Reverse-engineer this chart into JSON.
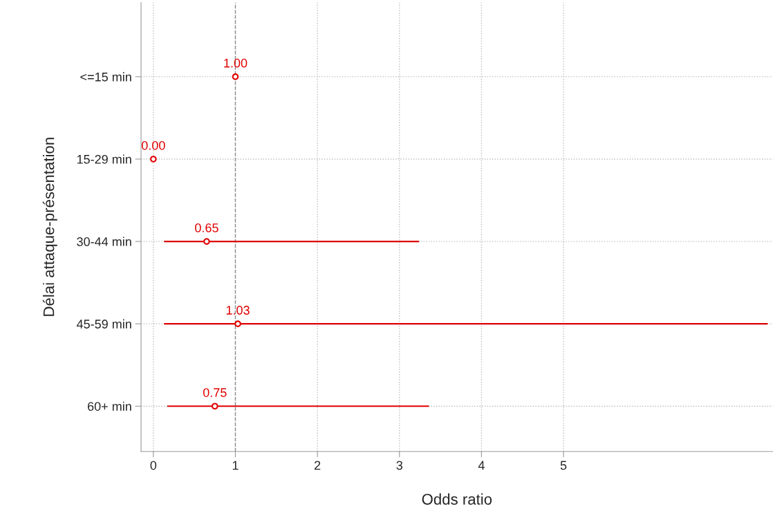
{
  "chart_data": {
    "type": "scatter",
    "orientation": "horizontal",
    "categories": [
      "<=15 min",
      "15-29 min",
      "30-44 min",
      "45-59 min",
      "60+ min"
    ],
    "color": "#e00000",
    "values": [
      1.0,
      0.0,
      0.65,
      1.03,
      0.75
    ],
    "errors": [
      null,
      null,
      [
        0.13,
        3.24
      ],
      [
        0.13,
        7.49
      ],
      [
        0.17,
        3.36
      ]
    ],
    "value_labels": [
      "1.00",
      "0.00",
      "0.65",
      "1.03",
      "0.75"
    ],
    "xlabel": "Odds ratio",
    "ylabel": "Délai attaque-présentation",
    "xlim": [
      -0.15,
      7.55
    ],
    "xticks": [
      0,
      1,
      2,
      3,
      4,
      5
    ],
    "ref_lines": [
      {
        "axis": "x",
        "value": 1,
        "color": "#8c8c8c",
        "line_style": "dashed"
      }
    ],
    "grid": true,
    "marker": "circle"
  }
}
